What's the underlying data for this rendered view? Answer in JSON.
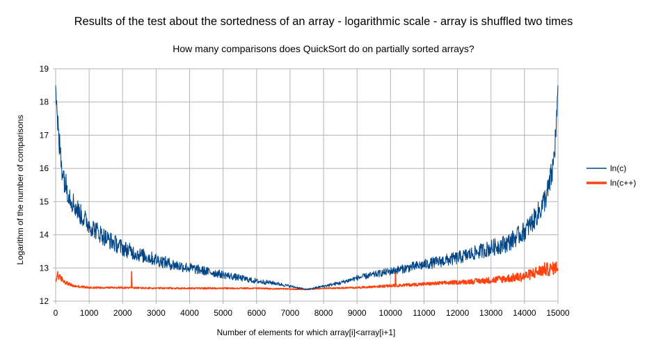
{
  "chart_data": {
    "type": "line",
    "title": "Results of the test about the sortedness of an array - logarithmic scale - array is shuffled two times",
    "subtitle": "How many comparisons does QuickSort do on partially sorted arrays?",
    "xlabel": "Number of elements for which array[i]<array[i+1]",
    "ylabel": "Logarithm of the number of comparisons",
    "xlim": [
      0,
      15000
    ],
    "ylim": [
      12,
      19
    ],
    "x_ticks": [
      0,
      1000,
      2000,
      3000,
      4000,
      5000,
      6000,
      7000,
      8000,
      9000,
      10000,
      11000,
      12000,
      13000,
      14000,
      15000
    ],
    "y_ticks": [
      12,
      13,
      14,
      15,
      16,
      17,
      18,
      19
    ],
    "grid": true,
    "legend_position": "right",
    "series": [
      {
        "name": "ln(c)",
        "color": "#004586",
        "x": [
          0,
          50,
          100,
          200,
          300,
          500,
          750,
          1000,
          1500,
          2000,
          2500,
          3000,
          3500,
          4000,
          4500,
          5000,
          5500,
          6000,
          6500,
          7000,
          7500,
          8000,
          8500,
          9000,
          9500,
          10000,
          10500,
          11000,
          11500,
          12000,
          12500,
          13000,
          13500,
          14000,
          14250,
          14500,
          14700,
          14850,
          14950,
          15000
        ],
        "values": [
          18.5,
          17.4,
          16.8,
          16.0,
          15.5,
          15.0,
          14.6,
          14.3,
          13.9,
          13.6,
          13.4,
          13.25,
          13.1,
          13.0,
          12.9,
          12.8,
          12.7,
          12.6,
          12.55,
          12.45,
          12.35,
          12.45,
          12.55,
          12.7,
          12.8,
          12.9,
          13.0,
          13.1,
          13.2,
          13.3,
          13.45,
          13.6,
          13.75,
          14.1,
          14.4,
          14.8,
          15.3,
          16.0,
          17.2,
          18.5
        ],
        "noise_amplitude": [
          0,
          0.5,
          0.5,
          0.45,
          0.4,
          0.35,
          0.32,
          0.3,
          0.28,
          0.25,
          0.22,
          0.2,
          0.18,
          0.16,
          0.14,
          0.12,
          0.1,
          0.08,
          0.06,
          0.04,
          0.02,
          0.04,
          0.06,
          0.08,
          0.1,
          0.12,
          0.14,
          0.16,
          0.18,
          0.2,
          0.22,
          0.25,
          0.28,
          0.3,
          0.32,
          0.35,
          0.4,
          0.45,
          0.5,
          0
        ]
      },
      {
        "name": "ln(c++)",
        "color": "#ff420e",
        "x": [
          0,
          50,
          100,
          300,
          500,
          1000,
          2000,
          3000,
          4000,
          5000,
          6000,
          7000,
          7500,
          8000,
          9000,
          10000,
          11000,
          12000,
          13000,
          13500,
          14000,
          14300,
          14600,
          14800,
          15000
        ],
        "values": [
          12.5,
          12.8,
          12.7,
          12.55,
          12.45,
          12.4,
          12.4,
          12.38,
          12.38,
          12.38,
          12.38,
          12.36,
          12.35,
          12.38,
          12.4,
          12.45,
          12.5,
          12.55,
          12.6,
          12.65,
          12.7,
          12.8,
          12.9,
          12.9,
          13.0
        ],
        "noise_amplitude": [
          0.15,
          0.25,
          0.2,
          0.12,
          0.08,
          0.06,
          0.05,
          0.05,
          0.05,
          0.04,
          0.04,
          0.03,
          0.02,
          0.03,
          0.05,
          0.08,
          0.1,
          0.12,
          0.2,
          0.25,
          0.3,
          0.35,
          0.4,
          0.4,
          0.35
        ]
      }
    ]
  }
}
